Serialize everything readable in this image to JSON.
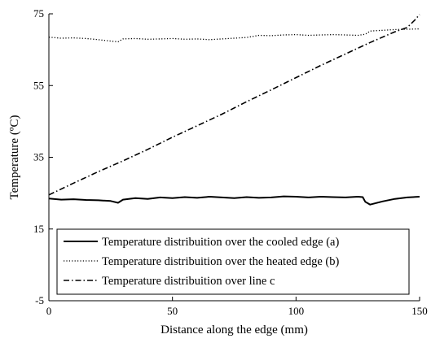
{
  "chart_data": {
    "type": "line",
    "xlabel": "Distance along the edge (mm)",
    "ylabel": "Temperature (ºC)",
    "xlim": [
      0,
      150
    ],
    "ylim": [
      -5,
      75
    ],
    "xticks": [
      0,
      50,
      100,
      150
    ],
    "yticks": [
      -5,
      15,
      35,
      55,
      75
    ],
    "grid": false,
    "legend_position": "bottom",
    "colors": {
      "axis": "#000000",
      "line": "#000000",
      "background": "#ffffff"
    },
    "series": [
      {
        "name": "Temperature distribuition over the cooled edge (a)",
        "style": "solid",
        "x": [
          0,
          5,
          10,
          15,
          20,
          25,
          28,
          30,
          35,
          40,
          45,
          50,
          55,
          60,
          65,
          70,
          75,
          80,
          85,
          90,
          95,
          100,
          105,
          110,
          115,
          120,
          125,
          127,
          128,
          130,
          135,
          140,
          145,
          150
        ],
        "y": [
          23.5,
          23.2,
          23.3,
          23.1,
          23.0,
          22.8,
          22.3,
          23.2,
          23.6,
          23.4,
          23.8,
          23.6,
          23.9,
          23.7,
          24.0,
          23.8,
          23.6,
          23.9,
          23.7,
          23.8,
          24.1,
          24.0,
          23.8,
          24.0,
          23.9,
          23.8,
          24.0,
          23.9,
          22.6,
          21.8,
          22.7,
          23.4,
          23.8,
          24.0
        ]
      },
      {
        "name": "Temperature distribuition over the heated edge (b)",
        "style": "dotted",
        "x": [
          0,
          5,
          10,
          15,
          20,
          25,
          28,
          30,
          35,
          40,
          45,
          50,
          55,
          60,
          65,
          70,
          75,
          80,
          85,
          90,
          95,
          100,
          105,
          110,
          115,
          120,
          125,
          128,
          130,
          135,
          140,
          145,
          150
        ],
        "y": [
          68.5,
          68.2,
          68.3,
          68.1,
          67.8,
          67.4,
          67.2,
          68.0,
          68.1,
          67.9,
          68.0,
          68.1,
          67.9,
          68.0,
          67.8,
          68.0,
          68.2,
          68.4,
          69.0,
          68.9,
          69.1,
          69.2,
          69.0,
          69.1,
          69.2,
          69.1,
          69.0,
          69.3,
          70.2,
          70.4,
          70.6,
          70.7,
          70.8
        ]
      },
      {
        "name": "Temperature distribuition over line c",
        "style": "dashdot",
        "x": [
          0,
          10,
          20,
          30,
          40,
          50,
          60,
          70,
          80,
          90,
          100,
          110,
          120,
          130,
          140,
          145,
          148,
          150
        ],
        "y": [
          24.5,
          27.8,
          31.0,
          34.0,
          37.2,
          40.6,
          43.8,
          47.0,
          50.5,
          53.8,
          57.2,
          60.6,
          63.8,
          67.0,
          70.0,
          71.2,
          73.2,
          74.8
        ]
      }
    ]
  }
}
